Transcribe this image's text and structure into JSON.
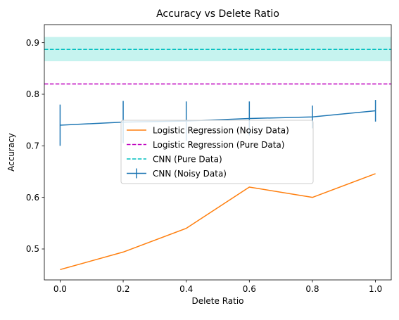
{
  "chart_data": {
    "type": "line",
    "title": "Accuracy vs Delete Ratio",
    "xlabel": "Delete Ratio",
    "ylabel": "Accuracy",
    "xlim": [
      -0.05,
      1.05
    ],
    "ylim": [
      0.44,
      0.935
    ],
    "xticks": [
      0.0,
      0.2,
      0.4,
      0.6,
      0.8,
      1.0
    ],
    "xtick_labels": [
      "0.0",
      "0.2",
      "0.4",
      "0.6",
      "0.8",
      "1.0"
    ],
    "yticks": [
      0.5,
      0.6,
      0.7,
      0.8,
      0.9
    ],
    "ytick_labels": [
      "0.5",
      "0.6",
      "0.7",
      "0.8",
      "0.9"
    ],
    "grid": false,
    "legend_position": "center",
    "series": [
      {
        "name": "Logistic Regression (Noisy Data)",
        "style": "solid",
        "color": "#ff7f0e",
        "x": [
          0.0,
          0.2,
          0.4,
          0.6,
          0.8,
          1.0
        ],
        "y": [
          0.46,
          0.494,
          0.54,
          0.62,
          0.6,
          0.646
        ]
      },
      {
        "name": "Logistic Regression (Pure Data)",
        "style": "dashed-hline",
        "color": "#bf00bf",
        "y": 0.82
      },
      {
        "name": "CNN (Pure Data)",
        "style": "dashed-hline",
        "color": "#00bfbf",
        "y": 0.887,
        "band": [
          0.864,
          0.911
        ],
        "band_color": "#b3efe9"
      },
      {
        "name": "CNN (Noisy Data)",
        "style": "errorbar",
        "color": "#1f77b4",
        "x": [
          0.0,
          0.2,
          0.4,
          0.6,
          0.8,
          1.0
        ],
        "y": [
          0.74,
          0.746,
          0.748,
          0.753,
          0.756,
          0.768
        ],
        "yerr": [
          0.04,
          0.041,
          0.038,
          0.033,
          0.022,
          0.021
        ]
      }
    ],
    "legend_order": [
      0,
      1,
      2,
      3
    ]
  }
}
